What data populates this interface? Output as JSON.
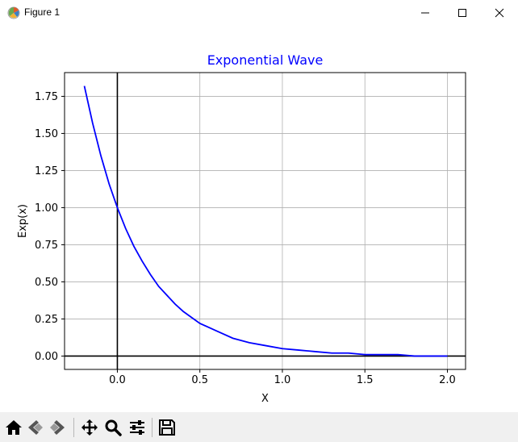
{
  "window": {
    "title": "Figure 1",
    "icons": [
      "figure-app-icon",
      "minimize-icon",
      "maximize-icon",
      "close-icon"
    ]
  },
  "toolbar": {
    "buttons": [
      "home-icon",
      "back-icon",
      "forward-icon",
      "pan-icon",
      "zoom-icon",
      "configure-subplots-icon",
      "save-icon"
    ]
  },
  "chart_data": {
    "type": "line",
    "title": "Exponential Wave",
    "xlabel": "X",
    "ylabel": "Exp(x)",
    "xlim": [
      -0.32,
      2.11
    ],
    "ylim": [
      -0.09,
      1.91
    ],
    "xticks": [
      "0.0",
      "0.5",
      "1.0",
      "1.5",
      "2.0"
    ],
    "xtick_values": [
      0,
      0.5,
      1,
      1.5,
      2
    ],
    "yticks": [
      "0.00",
      "0.25",
      "0.50",
      "0.75",
      "1.00",
      "1.25",
      "1.50",
      "1.75"
    ],
    "ytick_values": [
      0,
      0.25,
      0.5,
      0.75,
      1,
      1.25,
      1.5,
      1.75
    ],
    "grid": true,
    "series": [
      {
        "color": "#0000ff",
        "x": [
          -0.2,
          -0.15,
          -0.1,
          -0.05,
          0,
          0.05,
          0.1,
          0.15,
          0.2,
          0.25,
          0.3,
          0.35,
          0.4,
          0.45,
          0.5,
          0.6,
          0.7,
          0.8,
          0.9,
          1.0,
          1.1,
          1.2,
          1.3,
          1.4,
          1.5,
          1.6,
          1.7,
          1.8,
          1.9,
          2.0
        ],
        "y": [
          1.82,
          1.57,
          1.35,
          1.16,
          1.0,
          0.86,
          0.74,
          0.64,
          0.55,
          0.47,
          0.41,
          0.35,
          0.3,
          0.26,
          0.22,
          0.17,
          0.12,
          0.09,
          0.07,
          0.05,
          0.04,
          0.03,
          0.02,
          0.02,
          0.01,
          0.01,
          0.01,
          0.0,
          0.0,
          0.0
        ]
      }
    ],
    "reference_lines": {
      "x": 0,
      "y": 0,
      "color": "#000000"
    },
    "title_color": "#0000ff"
  }
}
